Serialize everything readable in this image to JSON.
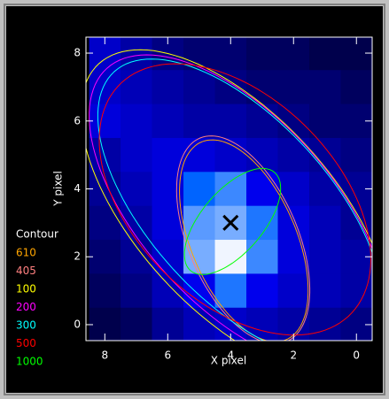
{
  "chart_data": {
    "type": "heatmap",
    "xlabel": "X pixel",
    "ylabel": "Y pixel",
    "xlim": [
      8.6,
      -0.5
    ],
    "ylim": [
      -0.47,
      8.47
    ],
    "xticks": [
      8,
      6,
      4,
      2,
      0
    ],
    "yticks": [
      0,
      2,
      4,
      6,
      8
    ],
    "image_x": [
      8,
      7,
      6,
      5,
      4,
      3,
      2,
      1,
      0
    ],
    "image_y": [
      8,
      7,
      6,
      5,
      4,
      3,
      2,
      1,
      0
    ],
    "image": [
      [
        0.45,
        0.35,
        0.25,
        0.2,
        0.2,
        0.15,
        0.15,
        0.1,
        0.1
      ],
      [
        0.45,
        0.4,
        0.35,
        0.3,
        0.25,
        0.2,
        0.2,
        0.2,
        0.15
      ],
      [
        0.5,
        0.45,
        0.4,
        0.35,
        0.35,
        0.3,
        0.25,
        0.2,
        0.2
      ],
      [
        0.35,
        0.45,
        0.5,
        0.5,
        0.45,
        0.4,
        0.35,
        0.3,
        0.25
      ],
      [
        0.3,
        0.4,
        0.5,
        0.6,
        0.7,
        0.55,
        0.45,
        0.35,
        0.3
      ],
      [
        0.25,
        0.35,
        0.5,
        0.75,
        0.8,
        0.65,
        0.5,
        0.4,
        0.3
      ],
      [
        0.2,
        0.3,
        0.45,
        0.8,
        1.0,
        0.7,
        0.5,
        0.4,
        0.35
      ],
      [
        0.15,
        0.25,
        0.4,
        0.55,
        0.65,
        0.55,
        0.45,
        0.4,
        0.35
      ],
      [
        0.1,
        0.15,
        0.3,
        0.4,
        0.45,
        0.4,
        0.35,
        0.3,
        0.25
      ]
    ],
    "marker": {
      "x": 4,
      "y": 3
    },
    "legend_title": "Contour",
    "contours": [
      {
        "name": "610",
        "color": "#ffa500",
        "cx": 3.58,
        "cy": 2.47,
        "a": 3.21,
        "b": 1.65,
        "angle": 64
      },
      {
        "name": "405",
        "color": "#ff8080",
        "cx": 3.6,
        "cy": 2.5,
        "a": 3.3,
        "b": 1.72,
        "angle": 64
      },
      {
        "name": "100",
        "color": "#ffff00",
        "cx": 3.86,
        "cy": 3.3,
        "a": 6.17,
        "b": 3.0,
        "angle": 44
      },
      {
        "name": "200",
        "color": "#ff00ff",
        "cx": 3.8,
        "cy": 3.35,
        "a": 5.9,
        "b": 2.9,
        "angle": 44
      },
      {
        "name": "300",
        "color": "#00ffff",
        "cx": 3.7,
        "cy": 3.4,
        "a": 5.7,
        "b": 2.75,
        "angle": 44
      },
      {
        "name": "500",
        "color": "#ff0000",
        "cx": 3.86,
        "cy": 3.69,
        "a": 5.0,
        "b": 3.1,
        "angle": 40
      },
      {
        "name": "1000",
        "color": "#00ff00",
        "cx": 3.94,
        "cy": 3.04,
        "a": 1.97,
        "b": 0.95,
        "angle": 134
      }
    ]
  }
}
